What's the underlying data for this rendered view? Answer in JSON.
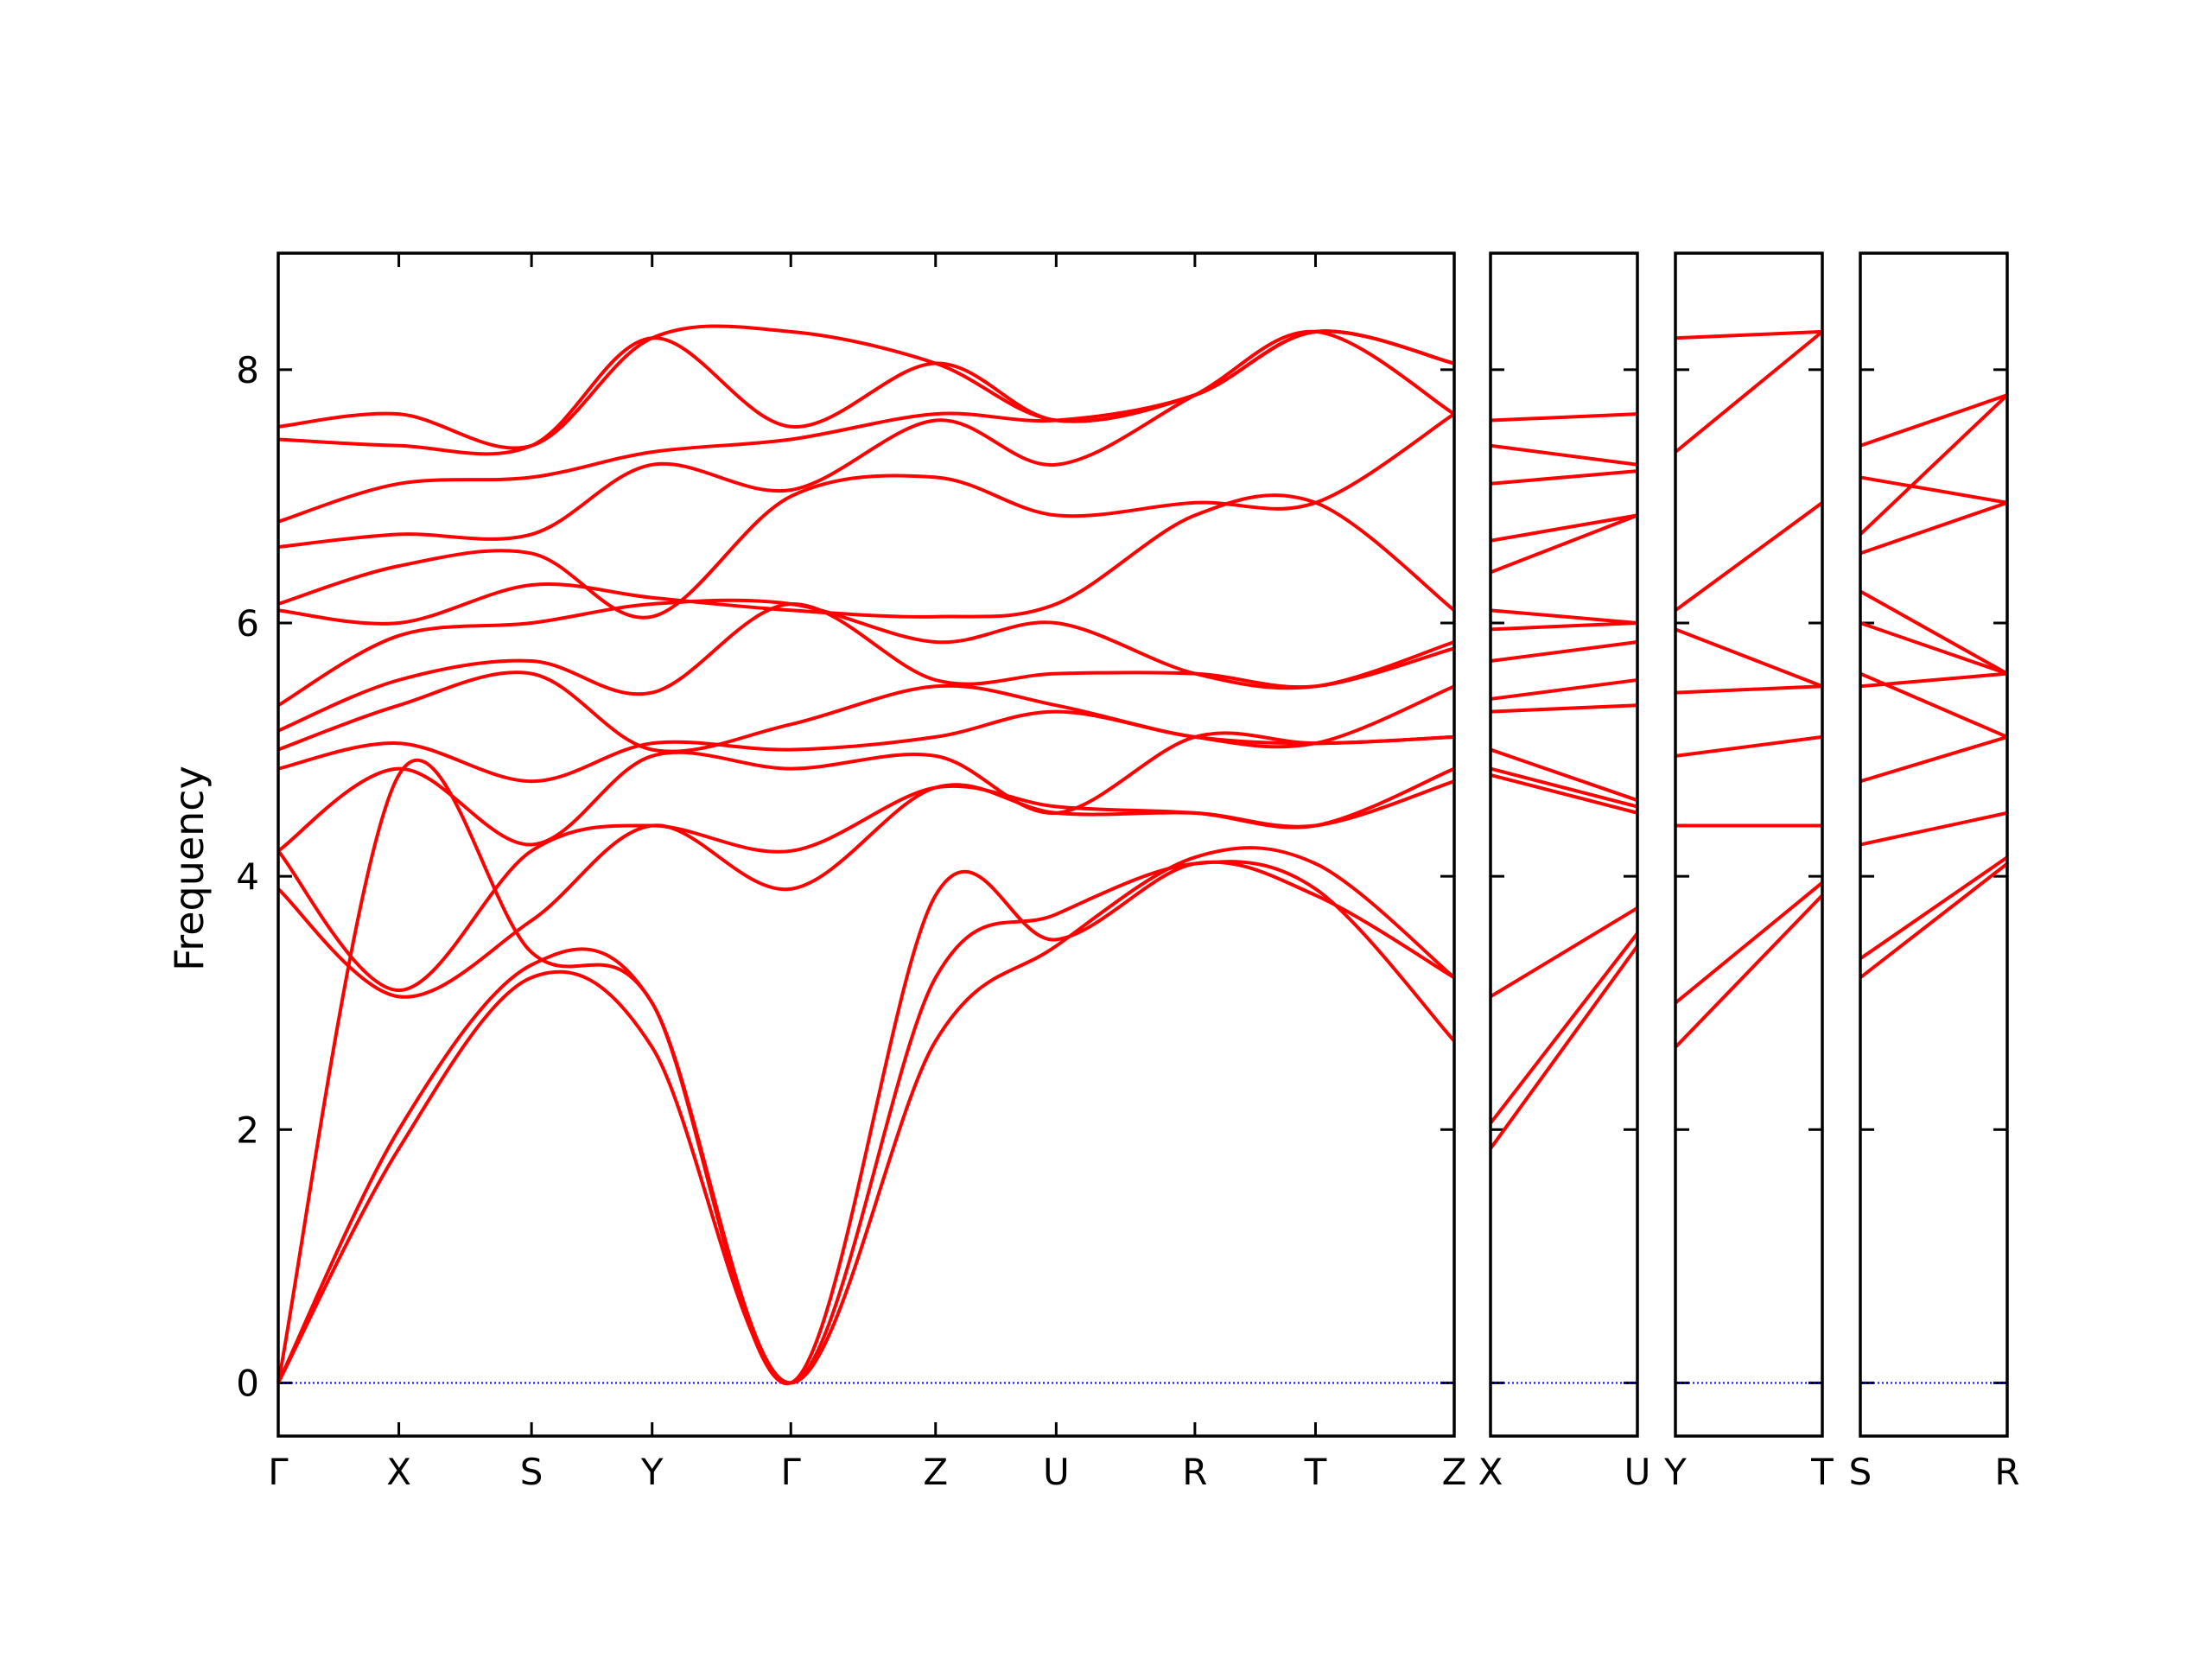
{
  "chart_data": {
    "type": "line",
    "ylabel": "Frequency",
    "ylim": [
      -0.42,
      8.92
    ],
    "yticks": [
      0,
      2,
      4,
      6,
      8
    ],
    "colors": {
      "bands": "#ff0000",
      "zero_line": "#0000ff",
      "frame": "#000000"
    },
    "panels": [
      {
        "xlabels": [
          "Γ",
          "X",
          "S",
          "Y",
          "Γ",
          "Z",
          "U",
          "R",
          "T",
          "Z"
        ],
        "x": [
          0,
          1,
          2.1,
          3.1,
          4.25,
          5.45,
          6.45,
          7.6,
          8.6,
          9.75
        ],
        "bands": [
          [
            0.0,
            2.0,
            3.3,
            3.0,
            0.0,
            3.2,
            3.7,
            4.1,
            3.9,
            2.7
          ],
          [
            0.0,
            1.85,
            3.2,
            2.65,
            0.0,
            2.7,
            3.45,
            4.15,
            4.1,
            3.2
          ],
          [
            0.0,
            4.8,
            3.4,
            3.0,
            0.0,
            3.85,
            3.5,
            4.1,
            3.85,
            3.2
          ],
          [
            3.9,
            3.05,
            3.65,
            4.4,
            3.9,
            4.7,
            4.5,
            4.5,
            4.4,
            4.75
          ],
          [
            4.2,
            3.1,
            4.2,
            4.4,
            4.2,
            4.7,
            4.55,
            4.5,
            4.4,
            4.85
          ],
          [
            4.2,
            4.85,
            4.25,
            4.95,
            4.85,
            4.95,
            4.5,
            5.1,
            5.05,
            5.1
          ],
          [
            4.85,
            5.05,
            4.75,
            5.05,
            5.0,
            5.1,
            5.3,
            5.1,
            5.05,
            5.1
          ],
          [
            5.0,
            5.35,
            5.6,
            5.0,
            5.2,
            5.5,
            5.35,
            5.1,
            5.05,
            5.5
          ],
          [
            5.15,
            5.55,
            5.7,
            5.45,
            6.15,
            5.55,
            5.6,
            5.6,
            5.5,
            5.8
          ],
          [
            5.35,
            5.9,
            6.0,
            6.15,
            6.15,
            5.85,
            6.0,
            5.6,
            5.5,
            5.85
          ],
          [
            6.1,
            6.0,
            6.3,
            6.2,
            6.1,
            6.05,
            6.15,
            6.85,
            6.95,
            6.1
          ],
          [
            6.15,
            6.45,
            6.55,
            6.05,
            7.0,
            7.15,
            6.85,
            6.95,
            6.95,
            7.65
          ],
          [
            6.6,
            6.7,
            6.7,
            7.25,
            7.05,
            7.6,
            7.25,
            7.8,
            8.3,
            7.65
          ],
          [
            6.8,
            7.1,
            7.15,
            7.35,
            7.45,
            7.65,
            7.6,
            7.8,
            8.3,
            8.05
          ],
          [
            7.45,
            7.4,
            7.4,
            8.25,
            7.55,
            8.05,
            7.6,
            7.8,
            8.3,
            8.05
          ],
          [
            7.55,
            7.65,
            7.4,
            8.25,
            8.3,
            8.05,
            7.6,
            7.8,
            8.3,
            8.05
          ]
        ]
      },
      {
        "xlabels": [
          "X",
          "U"
        ],
        "x": [
          0,
          1
        ],
        "bands": [
          [
            1.85,
            3.45
          ],
          [
            2.05,
            3.55
          ],
          [
            3.05,
            3.75
          ],
          [
            4.8,
            4.5
          ],
          [
            4.85,
            4.55
          ],
          [
            5.0,
            4.6
          ],
          [
            5.3,
            5.35
          ],
          [
            5.4,
            5.55
          ],
          [
            5.7,
            5.85
          ],
          [
            5.95,
            6.0
          ],
          [
            6.1,
            6.0
          ],
          [
            6.4,
            6.85
          ],
          [
            6.65,
            6.85
          ],
          [
            7.1,
            7.2
          ],
          [
            7.4,
            7.25
          ],
          [
            7.6,
            7.65
          ]
        ]
      },
      {
        "xlabels": [
          "Y",
          "T"
        ],
        "x": [
          0,
          1
        ],
        "bands": [
          [
            2.65,
            3.85
          ],
          [
            3.0,
            3.95
          ],
          [
            4.4,
            4.4
          ],
          [
            4.95,
            5.1
          ],
          [
            5.45,
            5.5
          ],
          [
            5.95,
            5.5
          ],
          [
            6.1,
            6.95
          ],
          [
            7.35,
            8.3
          ],
          [
            8.25,
            8.3
          ]
        ]
      },
      {
        "xlabels": [
          "S",
          "R"
        ],
        "x": [
          0,
          1
        ],
        "bands": [
          [
            3.2,
            4.1
          ],
          [
            3.35,
            4.15
          ],
          [
            4.25,
            4.5
          ],
          [
            4.75,
            5.1
          ],
          [
            5.5,
            5.6
          ],
          [
            5.6,
            5.1
          ],
          [
            6.0,
            5.6
          ],
          [
            6.25,
            5.6
          ],
          [
            6.55,
            6.95
          ],
          [
            6.7,
            7.8
          ],
          [
            7.15,
            6.95
          ],
          [
            7.4,
            7.8
          ]
        ]
      }
    ]
  }
}
